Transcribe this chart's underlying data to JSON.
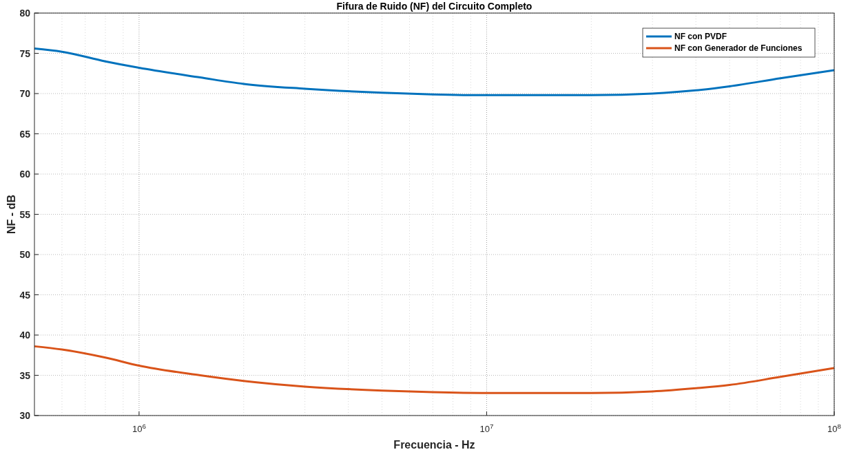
{
  "chart_data": {
    "type": "line",
    "title": "Fifura de Ruido (NF) del Circuito Completo",
    "xlabel": "Frecuencia - Hz",
    "ylabel": "NF - dB",
    "log": "x",
    "grid": true,
    "legend": "top right",
    "xlim": [
      500000,
      100000000
    ],
    "ylim": [
      30,
      80
    ],
    "xticks": [
      {
        "value": 1000000,
        "label": "10$^{6}$"
      },
      {
        "value": 10000000,
        "label": "10$^{7}$"
      },
      {
        "value": 100000000,
        "label": "10$^{8}$"
      }
    ],
    "yticks": [
      30,
      35,
      40,
      45,
      50,
      55,
      60,
      65,
      70,
      75,
      80
    ],
    "x": [
      500000,
      600000,
      800000,
      1000000,
      1500000,
      2000000,
      3000000,
      5000000,
      7000000,
      10000000,
      15000000,
      20000000,
      30000000,
      40000000,
      50000000,
      70000000,
      100000000
    ],
    "series": [
      {
        "name": "NF con PVDF",
        "color": "#0072bd",
        "values": [
          75.6,
          75.2,
          74.0,
          73.2,
          72.0,
          71.2,
          70.6,
          70.1,
          69.9,
          69.8,
          69.8,
          69.8,
          70.0,
          70.4,
          70.9,
          71.9,
          72.9
        ]
      },
      {
        "name": "NF con Generador de Funciones",
        "color": "#d95319",
        "values": [
          38.6,
          38.2,
          37.2,
          36.2,
          35.0,
          34.3,
          33.6,
          33.1,
          32.9,
          32.8,
          32.8,
          32.8,
          33.0,
          33.4,
          33.8,
          34.8,
          35.9
        ]
      }
    ]
  }
}
